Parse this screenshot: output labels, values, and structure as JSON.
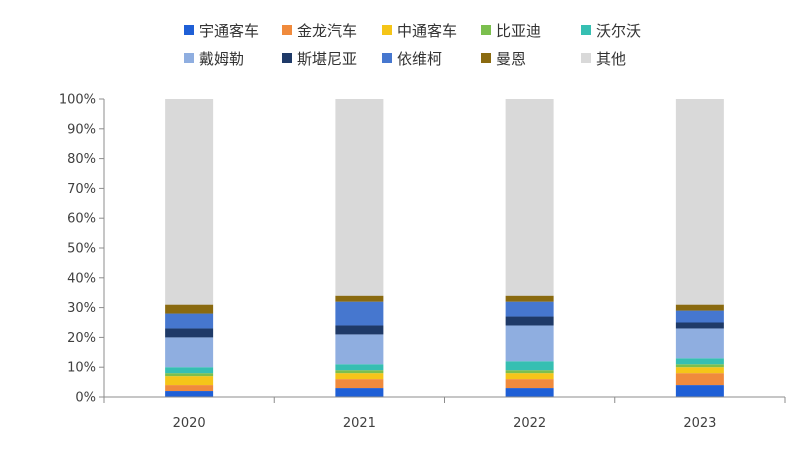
{
  "chart_data": {
    "type": "bar",
    "stacked": true,
    "normalized": true,
    "title": "",
    "xlabel": "",
    "ylabel": "",
    "ylim": [
      0,
      100
    ],
    "yticks": [
      "0%",
      "10%",
      "20%",
      "30%",
      "40%",
      "50%",
      "60%",
      "70%",
      "80%",
      "90%",
      "100%"
    ],
    "grid": false,
    "legend_position": "top",
    "categories": [
      "2020",
      "2021",
      "2022",
      "2023"
    ],
    "series": [
      {
        "name": "宇通客车",
        "color": "#1f5fd6",
        "values": [
          2,
          3,
          3,
          4
        ]
      },
      {
        "name": "金龙汽车",
        "color": "#f08a3c",
        "values": [
          2,
          3,
          3,
          4
        ]
      },
      {
        "name": "中通客车",
        "color": "#f5c518",
        "values": [
          3,
          2,
          2,
          2
        ]
      },
      {
        "name": "比亚迪",
        "color": "#7bbf4e",
        "values": [
          1,
          1,
          1,
          1
        ]
      },
      {
        "name": "沃尔沃",
        "color": "#36bfb2",
        "values": [
          2,
          2,
          3,
          2
        ]
      },
      {
        "name": "戴姆勒",
        "color": "#8faee0",
        "values": [
          10,
          10,
          12,
          10
        ]
      },
      {
        "name": "斯堪尼亚",
        "color": "#1f3a68",
        "values": [
          3,
          3,
          3,
          2
        ]
      },
      {
        "name": "依维柯",
        "color": "#4677cf",
        "values": [
          5,
          8,
          5,
          4
        ]
      },
      {
        "name": "曼恩",
        "color": "#8a6a10",
        "values": [
          3,
          2,
          2,
          2
        ]
      },
      {
        "name": "其他",
        "color": "#d9d9d9",
        "values": [
          69,
          66,
          66,
          69
        ]
      }
    ]
  }
}
